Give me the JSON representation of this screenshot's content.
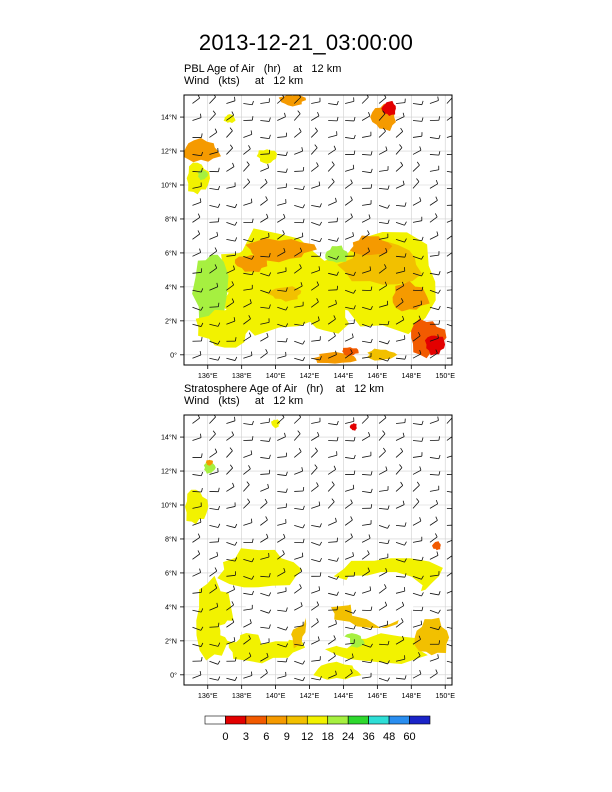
{
  "main_title": "2013-12-21_03:00:00",
  "colors": {
    "levels": [
      "#ffffff",
      "#e30000",
      "#f25a00",
      "#f59a00",
      "#f2c000",
      "#f2f200",
      "#a6f040",
      "#2ed82e",
      "#2eded6",
      "#2a8ef0",
      "#1a24c8",
      "#10106e"
    ],
    "frame": "#000000",
    "grid": "#cfcfcf",
    "barb": "#111111"
  },
  "chart_data": [
    {
      "type": "heatmap",
      "field_name": "PBL Age of Air",
      "field_units": "(hr)",
      "field_level": "at",
      "field_height": "12 km",
      "vector_name": "Wind",
      "vector_units": "(kts)",
      "vector_level": "at",
      "vector_height": "12 km",
      "x_ticks": [
        "136°E",
        "138°E",
        "140°E",
        "142°E",
        "144°E",
        "146°E",
        "148°E",
        "150°E"
      ],
      "y_ticks": [
        "0°",
        "2°N",
        "4°N",
        "6°N",
        "8°N",
        "10°N",
        "12°N",
        "14°N"
      ],
      "xlim": [
        134.6,
        150.4
      ],
      "ylim": [
        -0.6,
        15.3
      ],
      "grid": true,
      "regions": [
        {
          "lon": 140.2,
          "lat": 4.2,
          "rlon": 4.0,
          "rlat": 3.6,
          "value": 16
        },
        {
          "lon": 138.6,
          "lat": 4.8,
          "rlon": 2.6,
          "rlat": 1.6,
          "value": 12
        },
        {
          "lon": 140.2,
          "lat": 6.2,
          "rlon": 2.3,
          "rlat": 0.8,
          "value": 6
        },
        {
          "lon": 138.6,
          "lat": 5.4,
          "rlon": 1.2,
          "rlat": 0.6,
          "value": 8
        },
        {
          "lon": 140.6,
          "lat": 3.6,
          "rlon": 1.1,
          "rlat": 0.5,
          "value": 9
        },
        {
          "lon": 146.3,
          "lat": 4.3,
          "rlon": 4.2,
          "rlat": 3.5,
          "value": 14
        },
        {
          "lon": 146.3,
          "lat": 5.3,
          "rlon": 2.8,
          "rlat": 1.5,
          "value": 10
        },
        {
          "lon": 145.6,
          "lat": 6.4,
          "rlon": 1.4,
          "rlat": 0.7,
          "value": 6
        },
        {
          "lon": 147.9,
          "lat": 3.4,
          "rlon": 1.3,
          "rlat": 1.0,
          "value": 8
        },
        {
          "lon": 148.9,
          "lat": 1.0,
          "rlon": 1.2,
          "rlat": 1.3,
          "value": 5
        },
        {
          "lon": 149.4,
          "lat": 0.6,
          "rlon": 0.7,
          "rlat": 0.7,
          "value": 2
        },
        {
          "lon": 136.2,
          "lat": 3.6,
          "rlon": 1.2,
          "rlat": 3.0,
          "value": 19
        },
        {
          "lon": 137.0,
          "lat": 1.6,
          "rlon": 1.9,
          "rlat": 1.4,
          "value": 17
        },
        {
          "lon": 143.2,
          "lat": 2.2,
          "rlon": 1.4,
          "rlat": 1.1,
          "value": 17
        },
        {
          "lon": 143.6,
          "lat": 5.9,
          "rlon": 0.8,
          "rlat": 0.6,
          "value": 19
        },
        {
          "lon": 135.6,
          "lat": 12.0,
          "rlon": 1.3,
          "rlat": 0.8,
          "value": 7
        },
        {
          "lon": 135.4,
          "lat": 10.4,
          "rlon": 0.8,
          "rlat": 1.1,
          "value": 12
        },
        {
          "lon": 135.7,
          "lat": 10.6,
          "rlon": 0.35,
          "rlat": 0.35,
          "value": 20
        },
        {
          "lon": 139.5,
          "lat": 11.7,
          "rlon": 0.7,
          "rlat": 0.5,
          "value": 16
        },
        {
          "lon": 141.0,
          "lat": 15.0,
          "rlon": 0.9,
          "rlat": 0.4,
          "value": 7
        },
        {
          "lon": 146.4,
          "lat": 14.0,
          "rlon": 0.9,
          "rlat": 0.9,
          "value": 6
        },
        {
          "lon": 146.7,
          "lat": 14.5,
          "rlon": 0.5,
          "rlat": 0.5,
          "value": 2
        },
        {
          "lon": 137.3,
          "lat": 13.9,
          "rlon": 0.4,
          "rlat": 0.3,
          "value": 12
        },
        {
          "lon": 143.5,
          "lat": -0.2,
          "rlon": 1.5,
          "rlat": 0.4,
          "value": 7
        },
        {
          "lon": 146.2,
          "lat": 0.0,
          "rlon": 1.0,
          "rlat": 0.4,
          "value": 10
        },
        {
          "lon": 144.4,
          "lat": 0.2,
          "rlon": 0.6,
          "rlat": 0.3,
          "value": 4
        }
      ]
    },
    {
      "type": "heatmap",
      "field_name": "Stratosphere Age of Air",
      "field_units": "(hr)",
      "field_level": "at",
      "field_height": "12 km",
      "vector_name": "Wind",
      "vector_units": "(kts)",
      "vector_level": "at",
      "vector_height": "12 km",
      "x_ticks": [
        "136°E",
        "138°E",
        "140°E",
        "142°E",
        "144°E",
        "146°E",
        "148°E",
        "150°E"
      ],
      "y_ticks": [
        "0°",
        "2°N",
        "4°N",
        "6°N",
        "8°N",
        "10°N",
        "12°N",
        "14°N"
      ],
      "xlim": [
        134.6,
        150.4
      ],
      "ylim": [
        -0.6,
        15.3
      ],
      "grid": true,
      "regions": [
        {
          "lon": 139.0,
          "lat": 6.2,
          "rlon": 2.8,
          "rlat": 1.4,
          "value": 12
        },
        {
          "lon": 136.4,
          "lat": 3.2,
          "rlon": 1.4,
          "rlat": 2.8,
          "value": 13
        },
        {
          "lon": 139.2,
          "lat": 1.6,
          "rlon": 2.6,
          "rlat": 1.0,
          "value": 12
        },
        {
          "lon": 141.3,
          "lat": 3.0,
          "rlon": 0.6,
          "rlat": 1.6,
          "value": 11
        },
        {
          "lon": 146.8,
          "lat": 5.8,
          "rlon": 3.6,
          "rlat": 1.4,
          "value": 12
        },
        {
          "lon": 145.6,
          "lat": 3.6,
          "rlon": 2.6,
          "rlat": 1.0,
          "value": 11
        },
        {
          "lon": 146.2,
          "lat": 1.5,
          "rlon": 3.4,
          "rlat": 1.0,
          "value": 12
        },
        {
          "lon": 149.2,
          "lat": 2.2,
          "rlon": 1.2,
          "rlat": 1.3,
          "value": 10
        },
        {
          "lon": 143.6,
          "lat": 0.2,
          "rlon": 1.6,
          "rlat": 0.6,
          "value": 12
        },
        {
          "lon": 135.3,
          "lat": 9.9,
          "rlon": 0.8,
          "rlat": 1.2,
          "value": 13
        },
        {
          "lon": 136.1,
          "lat": 12.2,
          "rlon": 0.4,
          "rlat": 0.4,
          "value": 22
        },
        {
          "lon": 136.1,
          "lat": 12.5,
          "rlon": 0.25,
          "rlat": 0.2,
          "value": 7
        },
        {
          "lon": 140.0,
          "lat": 14.8,
          "rlon": 0.3,
          "rlat": 0.3,
          "value": 16
        },
        {
          "lon": 144.6,
          "lat": 14.6,
          "rlon": 0.25,
          "rlat": 0.25,
          "value": 2
        },
        {
          "lon": 149.5,
          "lat": 7.6,
          "rlon": 0.3,
          "rlat": 0.3,
          "value": 4
        },
        {
          "lon": 144.5,
          "lat": 2.0,
          "rlon": 0.9,
          "rlat": 0.5,
          "value": 20
        }
      ],
      "clear_regions": [
        {
          "lon": 140.0,
          "lat": 3.6,
          "rlon": 2.2,
          "rlat": 2.0
        },
        {
          "lon": 146.2,
          "lat": 4.6,
          "rlon": 2.9,
          "rlat": 1.9
        },
        {
          "lon": 137.4,
          "lat": 2.6,
          "rlon": 0.8,
          "rlat": 0.8
        },
        {
          "lon": 144.0,
          "lat": 1.9,
          "rlon": 0.6,
          "rlat": 0.4
        }
      ]
    }
  ],
  "colorbar": {
    "labels": [
      "0",
      "3",
      "6",
      "9",
      "12",
      "18",
      "24",
      "36",
      "48",
      "60"
    ]
  }
}
